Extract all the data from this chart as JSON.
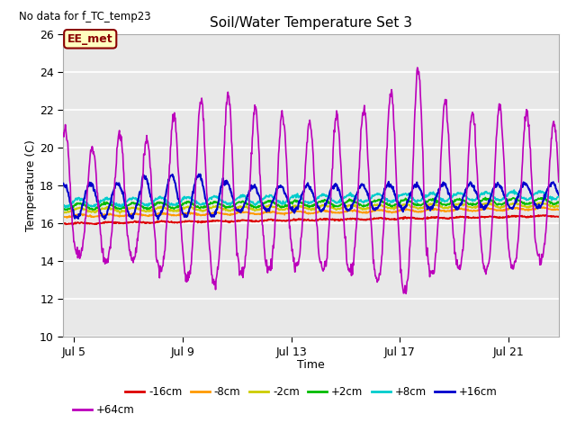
{
  "title": "Soil/Water Temperature Set 3",
  "no_data_text": "No data for f_TC_temp23",
  "xlabel": "Time",
  "ylabel": "Temperature (C)",
  "ylim": [
    10,
    26
  ],
  "yticks": [
    10,
    12,
    14,
    16,
    18,
    20,
    22,
    24,
    26
  ],
  "xlim_start": 4.6,
  "xlim_end": 22.85,
  "xtick_days": [
    5,
    9,
    13,
    17,
    21
  ],
  "xtick_labels": [
    "Jul 5",
    "Jul 9",
    "Jul 13",
    "Jul 17",
    "Jul 21"
  ],
  "legend_box_text": "EE_met",
  "legend_box_face": "#ffffc0",
  "legend_box_edge": "#8b0000",
  "series_colors": {
    "-16cm": "#dd0000",
    "-8cm": "#ff9900",
    "-2cm": "#cccc00",
    "+2cm": "#00bb00",
    "+8cm": "#00cccc",
    "+16cm": "#0000cc",
    "+64cm": "#bb00bb"
  },
  "bg_color": "#d8d8d8",
  "plot_bg_color": "#e8e8e8",
  "grid_color": "#ffffff",
  "fig_bg_color": "#ffffff"
}
